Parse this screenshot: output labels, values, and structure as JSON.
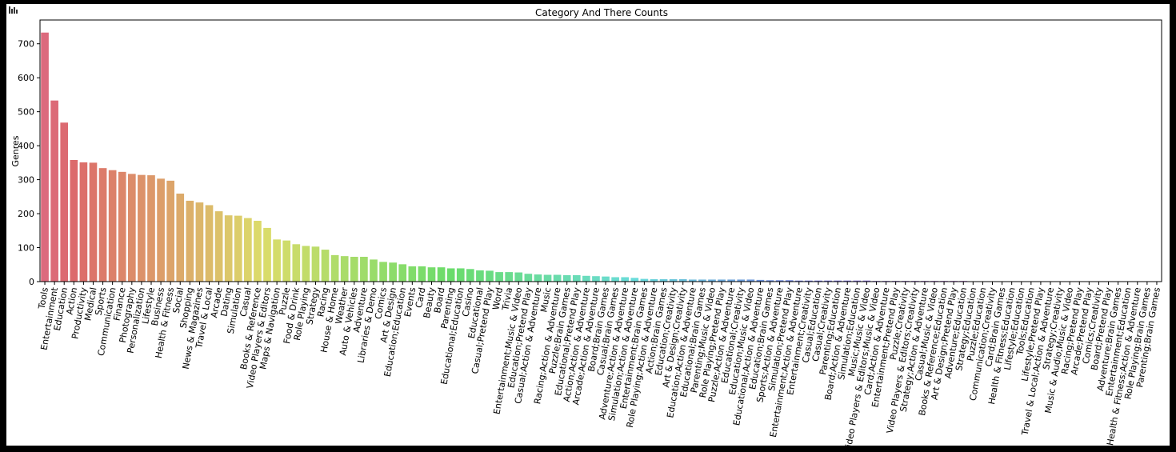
{
  "chart_data": {
    "type": "bar",
    "title": "Category And There Counts",
    "y_label": "Genres",
    "palette": "husl",
    "categories": [
      "Tools",
      "Entertainment",
      "Education",
      "Action",
      "Productivity",
      "Medical",
      "Sports",
      "Communication",
      "Finance",
      "Photography",
      "Personalization",
      "Lifestyle",
      "Business",
      "Health & Fitness",
      "Social",
      "Shopping",
      "News & Magazines",
      "Travel & Local",
      "Arcade",
      "Dating",
      "Simulation",
      "Casual",
      "Books & Reference",
      "Video Players & Editors",
      "Maps & Navigation",
      "Puzzle",
      "Food & Drink",
      "Role Playing",
      "Strategy",
      "Racing",
      "House & Home",
      "Weather",
      "Auto & Vehicles",
      "Adventure",
      "Libraries & Demo",
      "Comics",
      "Art & Design",
      "Education;Education",
      "Events",
      "Card",
      "Beauty",
      "Board",
      "Parenting",
      "Educational;Education",
      "Casino",
      "Educational",
      "Casual;Pretend Play",
      "Word",
      "Trivia",
      "Entertainment;Music & Video",
      "Education;Pretend Play",
      "Casual;Action & Adventure",
      "Music",
      "Racing;Action & Adventure",
      "Puzzle;Brain Games",
      "Educational;Pretend Play",
      "Action;Action & Adventure",
      "Arcade;Action & Adventure",
      "Board;Brain Games",
      "Casual;Brain Games",
      "Adventure;Action & Adventure",
      "Simulation;Action & Adventure",
      "Entertainment;Brain Games",
      "Role Playing;Action & Adventure",
      "Action;Brain Games",
      "Education;Creativity",
      "Art & Design;Creativity",
      "Education;Action & Adventure",
      "Educational;Brain Games",
      "Parenting;Music & Video",
      "Role Playing;Pretend Play",
      "Puzzle;Action & Adventure",
      "Educational;Creativity",
      "Education;Music & Video",
      "Educational;Action & Adventure",
      "Education;Brain Games",
      "Sports;Action & Adventure",
      "Simulation;Pretend Play",
      "Entertainment;Action & Adventure",
      "Entertainment;Creativity",
      "Casual;Education",
      "Casual;Creativity",
      "Parenting;Education",
      "Board;Action & Adventure",
      "Simulation;Education",
      "Music;Music & Video",
      "Video Players & Editors;Music & Video",
      "Card;Action & Adventure",
      "Entertainment;Pretend Play",
      "Puzzle;Creativity",
      "Video Players & Editors;Creativity",
      "Strategy;Action & Adventure",
      "Casual;Music & Video",
      "Books & Reference;Education",
      "Art & Design;Pretend Play",
      "Adventure;Education",
      "Strategy;Education",
      "Puzzle;Education",
      "Communication;Creativity",
      "Card;Brain Games",
      "Health & Fitness;Education",
      "Lifestyle;Education",
      "Tools;Education",
      "Lifestyle;Pretend Play",
      "Travel & Local;Action & Adventure",
      "Strategy;Creativity",
      "Music & Audio;Music & Video",
      "Racing;Pretend Play",
      "Arcade;Pretend Play",
      "Comics;Creativity",
      "Board;Pretend Play",
      "Adventure;Brain Games",
      "Entertainment;Education",
      "Health & Fitness;Action & Adventure",
      "Role Playing;Brain Games",
      "Parenting;Brain Games"
    ],
    "values": [
      733,
      533,
      468,
      358,
      351,
      350,
      334,
      328,
      323,
      317,
      314,
      313,
      303,
      297,
      259,
      238,
      233,
      225,
      207,
      195,
      194,
      187,
      179,
      158,
      124,
      121,
      110,
      105,
      103,
      94,
      78,
      75,
      73,
      73,
      65,
      58,
      56,
      51,
      45,
      45,
      42,
      42,
      39,
      39,
      37,
      33,
      32,
      28,
      28,
      27,
      23,
      21,
      20,
      20,
      19,
      19,
      17,
      16,
      15,
      13,
      13,
      11,
      8,
      7,
      7,
      7,
      7,
      6,
      6,
      6,
      6,
      6,
      6,
      6,
      5,
      4,
      4,
      4,
      3,
      3,
      3,
      3,
      3,
      3,
      3,
      3,
      2,
      2,
      2,
      2,
      2,
      2,
      2,
      2,
      2,
      2,
      1,
      1,
      1,
      1,
      1,
      1,
      1,
      1,
      1,
      1,
      1,
      1,
      1,
      1,
      1,
      1,
      1,
      1,
      1,
      1
    ],
    "ylim": [
      0,
      770
    ],
    "yticks": [
      0,
      100,
      200,
      300,
      400,
      500,
      600,
      700
    ]
  }
}
